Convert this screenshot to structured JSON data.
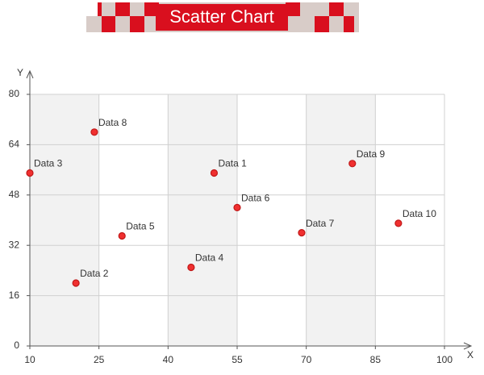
{
  "chart_data": {
    "type": "scatter",
    "title": "Scatter  Chart",
    "x_label": "X",
    "y_label": "Y",
    "x": [
      50,
      20,
      10,
      45,
      30,
      55,
      69,
      24,
      80,
      90
    ],
    "values": [
      55,
      20,
      55,
      25,
      35,
      44,
      36,
      68,
      58,
      39
    ],
    "point_labels": [
      "Data 1",
      "Data 2",
      "Data 3",
      "Data 4",
      "Data 5",
      "Data 6",
      "Data 7",
      "Data 8",
      "Data 9",
      "Data 10"
    ],
    "color": "#f03030",
    "xlim": [
      10,
      100
    ],
    "xticks": [
      10,
      25,
      40,
      55,
      70,
      85,
      100
    ],
    "ylim": [
      0,
      80
    ],
    "yticks": [
      0,
      16,
      32,
      48,
      64,
      80
    ],
    "grid": true
  }
}
